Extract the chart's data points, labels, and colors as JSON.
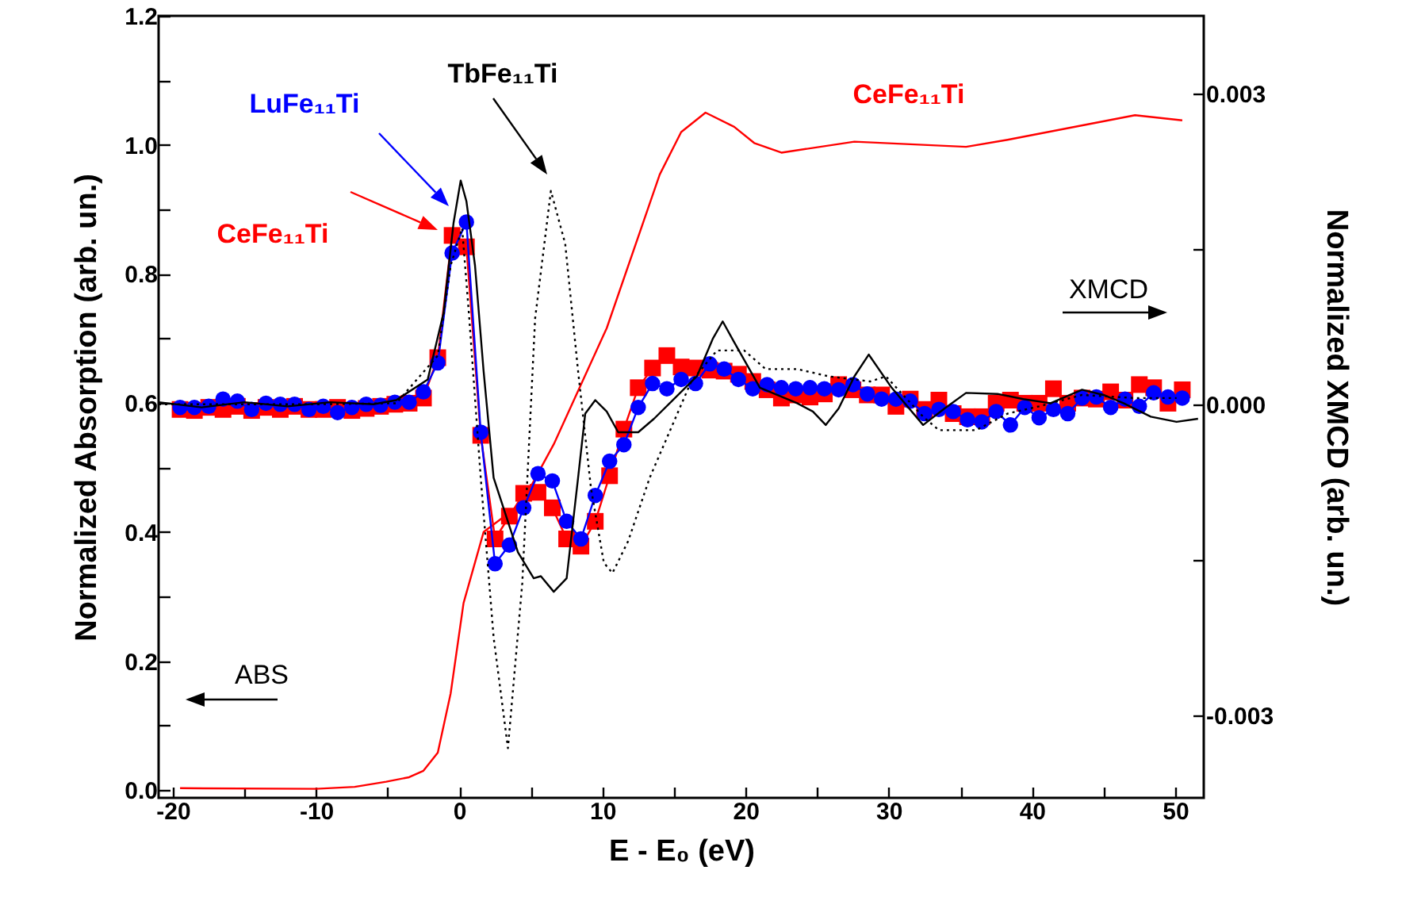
{
  "chart_data": {
    "type": "line",
    "xlabel": "E - E₀ (eV)",
    "ylabel": "Normalized Absorption (arb. un.)",
    "y2label": "Normalized XMCD (arb. un.)",
    "xlim": [
      -21,
      52
    ],
    "ylim": [
      -0.012,
      1.2
    ],
    "y2lim": [
      -0.0038,
      0.00375
    ],
    "xticks": [
      -20,
      {
        "value": -15,
        "label": null
      },
      -10,
      {
        "value": -5,
        "label": null
      },
      0,
      {
        "value": 5,
        "label": null
      },
      10,
      {
        "value": 15,
        "label": null
      },
      20,
      {
        "value": 25,
        "label": null
      },
      30,
      {
        "value": 35,
        "label": null
      },
      40,
      {
        "value": 45,
        "label": null
      },
      50
    ],
    "yticks": [
      {
        "value": 0,
        "label": "0.0"
      },
      {
        "value": 0.1,
        "label": null
      },
      0.2,
      {
        "value": 0.3,
        "label": null
      },
      0.4,
      {
        "value": 0.5,
        "label": null
      },
      0.6,
      {
        "value": 0.7,
        "label": null
      },
      0.8,
      {
        "value": 0.9,
        "label": null
      },
      {
        "value": 1,
        "label": "1.0"
      },
      {
        "value": 1.1,
        "label": null
      },
      1.2
    ],
    "y2ticks": [
      -0.003,
      {
        "value": -0.0015,
        "label": null
      },
      {
        "value": 0,
        "label": "0.000"
      },
      {
        "value": 0.0015,
        "label": null
      },
      0.003
    ],
    "x": [
      -19.5,
      -18.5,
      -17.5,
      -16.5,
      -15.5,
      -14.5,
      -13.5,
      -12.5,
      -11.5,
      -10.5,
      -9.5,
      -8.5,
      -7.5,
      -6.5,
      -5.5,
      -4.5,
      -3.5,
      -2.5,
      -1.5,
      -0.5,
      0.5,
      1.5,
      2.5,
      3.5,
      4.5,
      5.5,
      6.5,
      7.5,
      8.5,
      9.5,
      10.5,
      11.5,
      12.5,
      13.5,
      14.5,
      15.5,
      16.5,
      17.5,
      18.5,
      19.5,
      20.5,
      21.5,
      22.5,
      23.5,
      24.5,
      25.5,
      26.5,
      27.5,
      28.5,
      29.5,
      30.5,
      31.5,
      32.5,
      33.5,
      34.5,
      35.5,
      36.5,
      37.5,
      38.5,
      39.5,
      40.5,
      41.5,
      42.5,
      43.5,
      44.5,
      45.5,
      46.5,
      47.5,
      48.5,
      49.5,
      50.5
    ],
    "annotations": [
      "XMCD",
      "ABS"
    ],
    "series": [
      {
        "name": "CeFe₁₁Ti",
        "color": "#ff0000",
        "marker": "none",
        "line_style": "solid",
        "x": [
          -19.5,
          -10,
          -7.3,
          -5.1,
          -3.5,
          -2.5,
          -1.5,
          -0.6,
          0.3,
          1.7,
          2.9,
          4.4,
          6.6,
          10.3,
          14,
          15.5,
          17.2,
          19.2,
          20.6,
          22.5,
          27.6,
          35.4,
          38.3,
          47.2,
          50.5
        ],
        "values": [
          0.003,
          0.002,
          0.005,
          0.013,
          0.02,
          0.03,
          0.058,
          0.15,
          0.29,
          0.4,
          0.42,
          0.446,
          0.536,
          0.716,
          0.954,
          1.02,
          1.05,
          1.028,
          1.003,
          0.988,
          1.005,
          0.997,
          1.008,
          1.046,
          1.038
        ]
      },
      {
        "name": "CeFe₁₁Ti",
        "color": "#ff0000",
        "axis": "y2",
        "marker": "square",
        "line_style": "solid",
        "values": [
          -5e-05,
          -6e-05,
          -3e-05,
          -5e-05,
          -2e-05,
          -6e-05,
          -3e-05,
          -5e-05,
          -2e-05,
          -5e-05,
          -5e-05,
          -3e-05,
          -6e-05,
          -4e-05,
          -2e-05,
          0,
          1e-05,
          6e-05,
          0.00045,
          0.00163,
          0.00152,
          -0.0003,
          -0.0013,
          -0.00108,
          -0.00086,
          -0.00085,
          -0.001,
          -0.0013,
          -0.00137,
          -0.00113,
          -0.00069,
          -0.00024,
          0.00016,
          0.00035,
          0.00047,
          0.00036,
          0.00035,
          0.00033,
          0.00032,
          0.00029,
          0.00022,
          0.00014,
          6e-05,
          9e-05,
          7e-05,
          0.0001,
          0.00019,
          0.00014,
          9e-05,
          9e-05,
          -2e-05,
          5e-05,
          -5e-05,
          4e-05,
          -9e-05,
          -0.00012,
          -0.00012,
          1e-05,
          4e-05,
          1e-05,
          1e-05,
          0.00015,
          1e-05,
          6e-05,
          5e-05,
          0.00012,
          4e-05,
          0.00019,
          0.00016,
          1e-05,
          0.00014
        ]
      },
      {
        "name": "LuFe₁₁Ti",
        "color": "#0000ff",
        "axis": "y2",
        "marker": "circle",
        "line_style": "solid",
        "values": [
          -3e-05,
          -3e-05,
          -2e-05,
          5e-05,
          3e-05,
          -5e-05,
          1e-05,
          0,
          0,
          -5e-05,
          -2e-05,
          -8e-05,
          -3e-05,
          0,
          -1e-05,
          2e-05,
          2e-05,
          0.00012,
          0.0004,
          0.00146,
          0.00176,
          -0.00027,
          -0.00154,
          -0.00136,
          -0.001,
          -0.00067,
          -0.00074,
          -0.00113,
          -0.0013,
          -0.00088,
          -0.00055,
          -0.00039,
          -3e-05,
          0.0002,
          0.00015,
          0.00024,
          0.0002,
          0.00039,
          0.00034,
          0.00024,
          0.00015,
          0.00019,
          0.00016,
          0.00015,
          0.00016,
          0.00015,
          0.00014,
          0.00019,
          0.0001,
          5e-05,
          5e-05,
          3e-05,
          -9e-05,
          -5e-05,
          -7e-05,
          -0.00015,
          -0.00017,
          -7e-05,
          -0.0002,
          -3e-05,
          -0.00013,
          -5e-05,
          -9e-05,
          6e-05,
          7e-05,
          -3e-05,
          5e-05,
          -2e-05,
          0.00011,
          7e-05,
          6e-05
        ]
      },
      {
        "color": "#000000",
        "axis": "y2",
        "marker": "none",
        "line_style": "solid",
        "x": [
          -21,
          -18,
          -15,
          -12,
          -9,
          -6,
          -4.4,
          -2.2,
          -1.1,
          -0.4,
          0.1,
          0.5,
          1.1,
          1.7,
          2.4,
          4.1,
          5.2,
          5.7,
          6.6,
          7.5,
          8.3,
          8.8,
          9.5,
          10.3,
          11.1,
          12.5,
          13.6,
          16.6,
          17.7,
          18.4,
          19.2,
          21,
          23.6,
          24.7,
          25.6,
          26.5,
          27.6,
          28.6,
          30.2,
          32.4,
          33.9,
          35.4,
          37.6,
          39.4,
          41.3,
          43.5,
          45,
          46.4,
          48.3,
          50.1,
          51.6
        ],
        "values": [
          2e-05,
          -3e-05,
          2e-05,
          -2e-05,
          2e-05,
          0,
          4e-05,
          0.00024,
          0.00088,
          0.00175,
          0.00216,
          0.00196,
          0.00134,
          0.00032,
          -0.00071,
          -0.00143,
          -0.00168,
          -0.00166,
          -0.00181,
          -0.00168,
          -0.00071,
          -9e-05,
          4e-05,
          -7e-05,
          -0.00027,
          -0.00027,
          -0.00014,
          0.00027,
          0.00063,
          0.0008,
          0.0006,
          0.00016,
          1e-05,
          -7e-05,
          -0.0002,
          -4e-05,
          0.00027,
          0.00048,
          0.00016,
          -0.0002,
          -4e-05,
          0.00011,
          0.0001,
          5e-05,
          1e-05,
          0.00014,
          9e-05,
          1e-05,
          -0.00012,
          -0.00017,
          -0.00014
        ]
      },
      {
        "name": "TbFe₁₁Ti",
        "color": "#000000",
        "axis": "y2",
        "marker": "none",
        "line_style": "dotted",
        "x": [
          -21,
          -10,
          -4.4,
          -1.5,
          -0.6,
          0.2,
          0.7,
          1.5,
          2.4,
          3.4,
          4.4,
          5.3,
          6.4,
          7.4,
          8.3,
          9.2,
          10.1,
          10.7,
          11.8,
          13.3,
          16.2,
          18,
          19.9,
          21.4,
          23.6,
          25.8,
          28.7,
          29.8,
          32.4,
          33.5,
          36.1,
          38.3,
          40.5,
          43.5,
          47.2,
          50.1
        ],
        "values": [
          0,
          0,
          1e-05,
          0.00047,
          0.00134,
          0.0017,
          0.00083,
          -0.00071,
          -0.00225,
          -0.00332,
          -0.00173,
          0.00083,
          0.00206,
          0.00155,
          0.00032,
          -0.00081,
          -0.00153,
          -0.00163,
          -0.00132,
          -0.00071,
          0.00022,
          0.00052,
          0.00052,
          0.00034,
          0.00034,
          0.00027,
          0.00022,
          0.00027,
          -0.00012,
          -0.00025,
          -0.00025,
          -9e-05,
          -2e-05,
          9e-05,
          6e-05,
          6e-05
        ]
      }
    ]
  }
}
